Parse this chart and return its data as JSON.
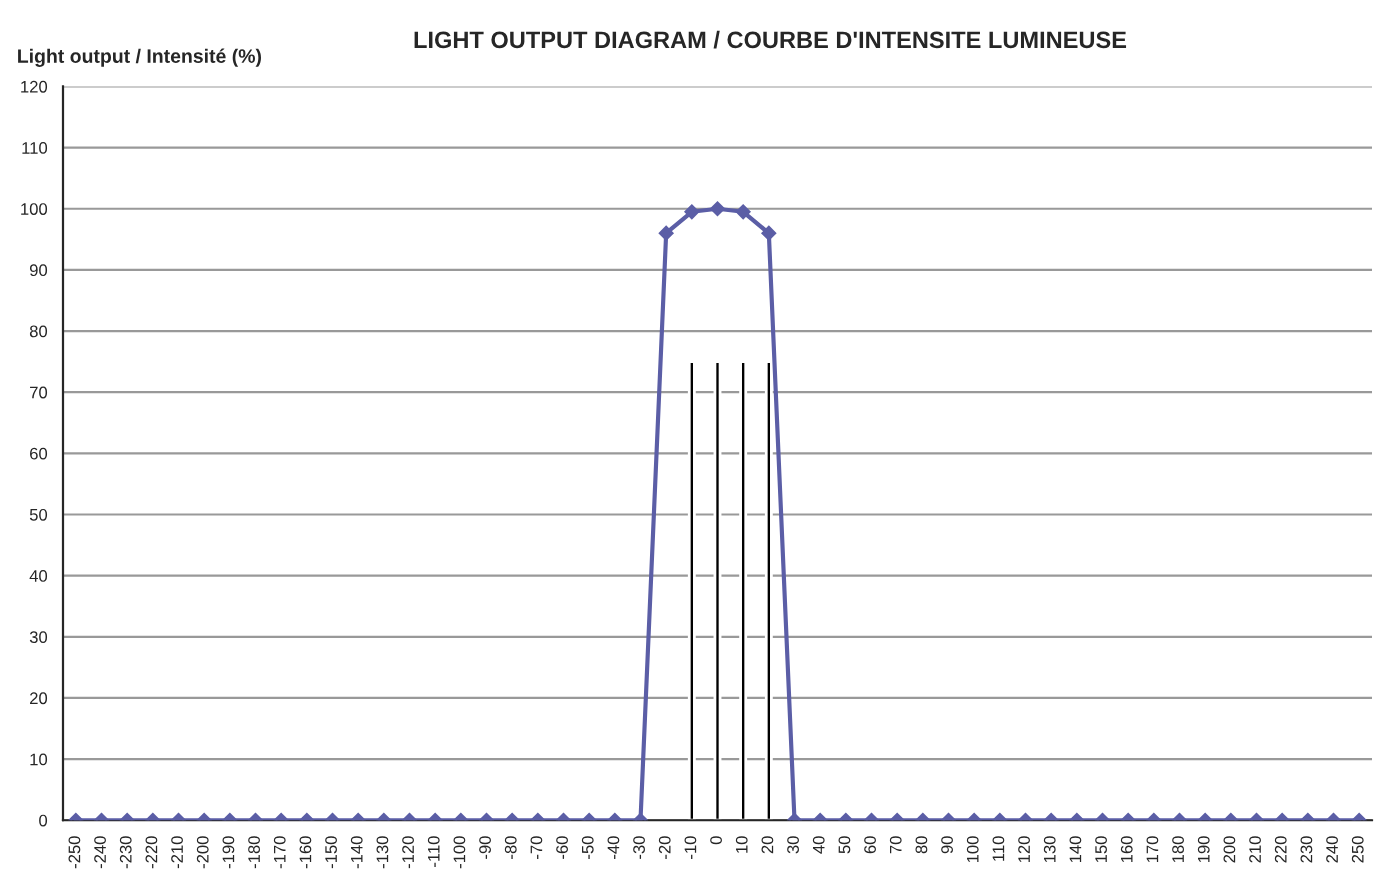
{
  "chart_data": {
    "type": "line",
    "title": "LIGHT OUTPUT DIAGRAM / COURBE D'INTENSITE LUMINEUSE",
    "ylabel": "Light output / Intensité (%)",
    "categories": [
      "-250",
      "-240",
      "-230",
      "-220",
      "-210",
      "-200",
      "-190",
      "-180",
      "-170",
      "-160",
      "-150",
      "-140",
      "-130",
      "-120",
      "-110",
      "-100",
      "-90",
      "-80",
      "-70",
      "-60",
      "-50",
      "-40",
      "-30",
      "-20",
      "-10",
      "0",
      "10",
      "20",
      "30",
      "40",
      "50",
      "60",
      "70",
      "80",
      "90",
      "100",
      "110",
      "120",
      "130",
      "140",
      "150",
      "160",
      "170",
      "180",
      "190",
      "200",
      "210",
      "220",
      "230",
      "240",
      "250"
    ],
    "series": [
      {
        "type": "bar",
        "color": "#000000",
        "values": [
          null,
          null,
          null,
          null,
          null,
          null,
          null,
          null,
          null,
          null,
          null,
          null,
          null,
          null,
          null,
          null,
          null,
          null,
          null,
          null,
          null,
          null,
          null,
          null,
          75,
          75,
          75,
          75,
          null,
          null,
          null,
          null,
          null,
          null,
          null,
          null,
          null,
          null,
          null,
          null,
          null,
          null,
          null,
          null,
          null,
          null,
          null,
          null,
          null,
          null,
          null
        ]
      },
      {
        "color": "#5b5ea6",
        "values": [
          0,
          0,
          0,
          0,
          0,
          0,
          0,
          0,
          0,
          0,
          0,
          0,
          0,
          0,
          0,
          0,
          0,
          0,
          0,
          0,
          0,
          0,
          0,
          96,
          99.5,
          100,
          99.5,
          96,
          0,
          0,
          0,
          0,
          0,
          0,
          0,
          0,
          0,
          0,
          0,
          0,
          0,
          0,
          0,
          0,
          0,
          0,
          0,
          0,
          0,
          0,
          0
        ]
      }
    ],
    "ylim": [
      0,
      120
    ],
    "yticks": [
      0,
      10,
      20,
      30,
      40,
      50,
      60,
      70,
      80,
      90,
      100,
      110,
      120
    ],
    "grid": "y",
    "marker": "diamond",
    "line_style": "solid",
    "legend": false
  }
}
